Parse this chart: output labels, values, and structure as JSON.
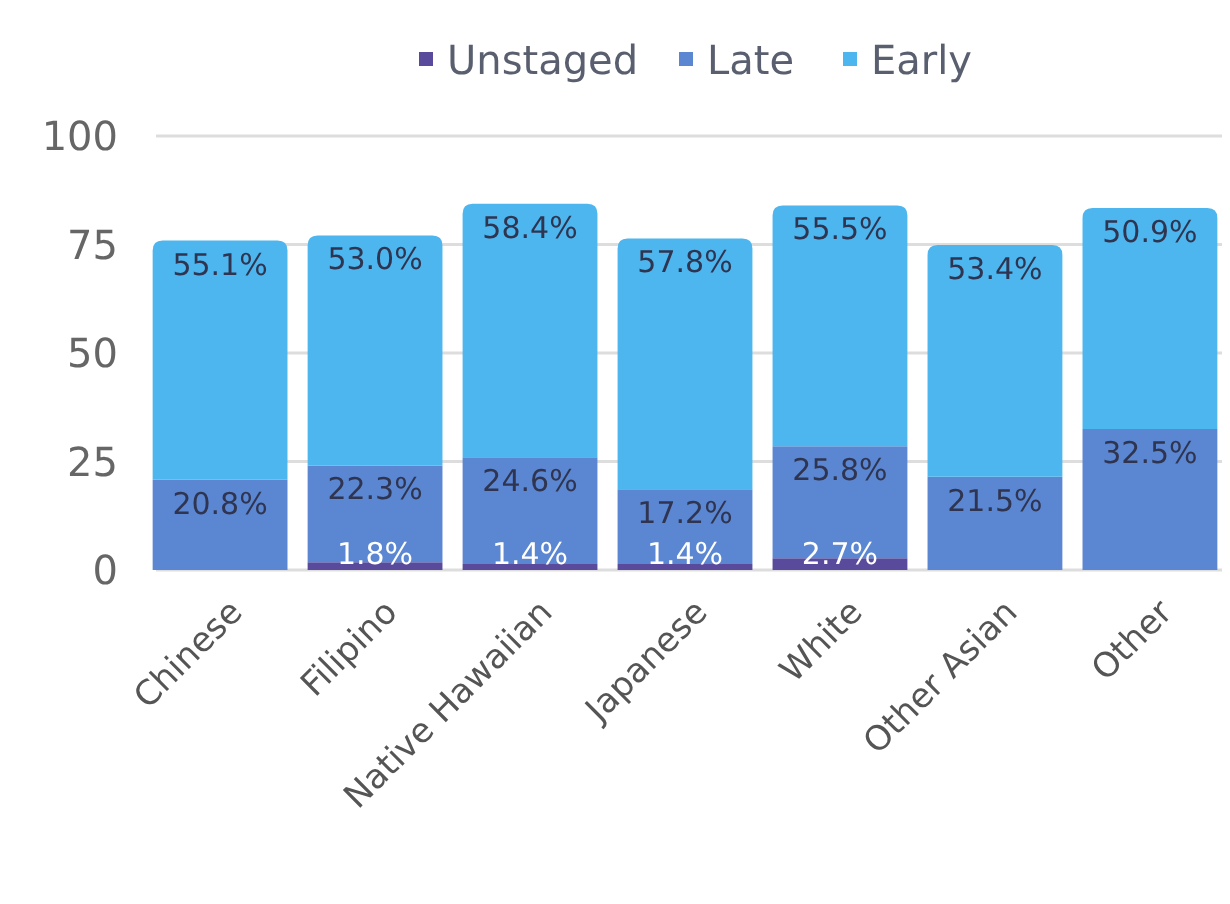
{
  "chart_data": {
    "type": "bar",
    "stacked": true,
    "categories": [
      "Chinese",
      "Filipino",
      "Native Hawaiian",
      "Japanese",
      "White",
      "Other Asian",
      "Other"
    ],
    "series": [
      {
        "name": "Unstaged",
        "color": "#5a4a9c",
        "values": [
          null,
          1.8,
          1.4,
          1.4,
          2.7,
          null,
          null
        ],
        "value_labels": [
          null,
          "1.8%",
          "1.4%",
          "1.4%",
          "2.7%",
          null,
          null
        ]
      },
      {
        "name": "Late",
        "color": "#5b86d1",
        "values": [
          20.8,
          22.3,
          24.6,
          17.2,
          25.8,
          21.5,
          32.5
        ],
        "value_labels": [
          "20.8%",
          "22.3%",
          "24.6%",
          "17.2%",
          "25.8%",
          "21.5%",
          "32.5%"
        ]
      },
      {
        "name": "Early",
        "color": "#4db6ee",
        "values": [
          55.1,
          53.0,
          58.4,
          57.8,
          55.5,
          53.4,
          50.9
        ],
        "value_labels": [
          "55.1%",
          "53.0%",
          "58.4%",
          "57.8%",
          "55.5%",
          "53.4%",
          "50.9%"
        ]
      }
    ],
    "ylim": [
      0,
      100
    ],
    "yticks": [
      0,
      25,
      50,
      75,
      100
    ],
    "grid": "y",
    "legend": "top"
  }
}
